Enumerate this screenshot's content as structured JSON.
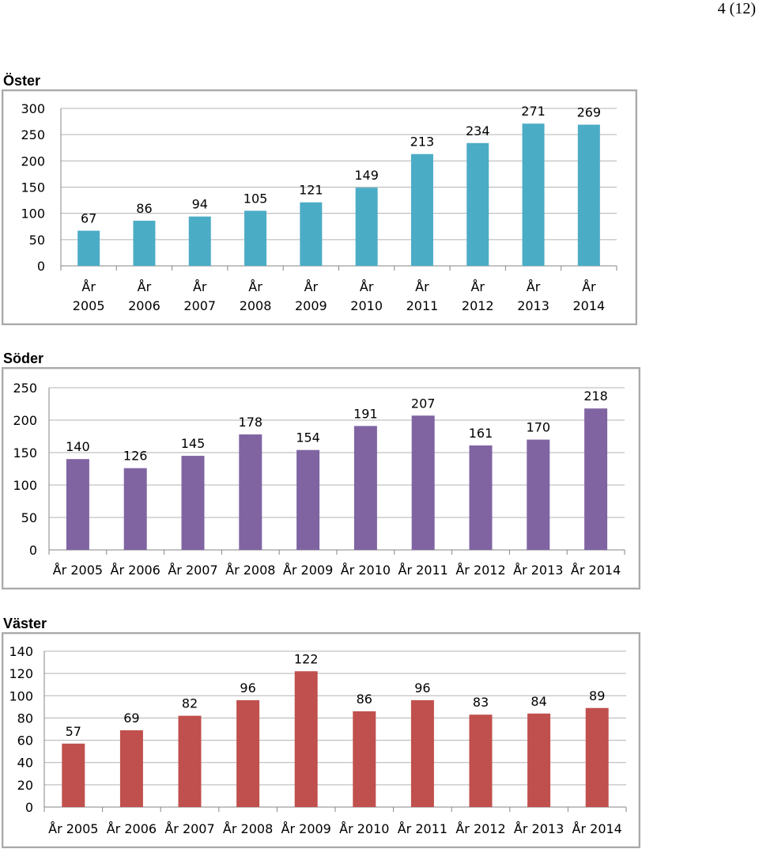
{
  "page_number": "4 (12)",
  "chart_data": [
    {
      "type": "bar",
      "title": "Öster",
      "color": "#4bacc6",
      "categories": [
        [
          "År",
          "2005"
        ],
        [
          "År",
          "2006"
        ],
        [
          "År",
          "2007"
        ],
        [
          "År",
          "2008"
        ],
        [
          "År",
          "2009"
        ],
        [
          "År",
          "2010"
        ],
        [
          "År",
          "2011"
        ],
        [
          "År",
          "2012"
        ],
        [
          "År",
          "2013"
        ],
        [
          "År",
          "2014"
        ]
      ],
      "values": [
        67,
        86,
        94,
        105,
        121,
        149,
        213,
        234,
        271,
        269
      ],
      "ylim": [
        0,
        300
      ],
      "yticks": [
        0,
        50,
        100,
        150,
        200,
        250,
        300
      ],
      "xlabel": "",
      "ylabel": ""
    },
    {
      "type": "bar",
      "title": "Söder",
      "color": "#8064a2",
      "categories": [
        "År 2005",
        "År 2006",
        "År 2007",
        "År 2008",
        "År 2009",
        "År 2010",
        "År 2011",
        "År 2012",
        "År 2013",
        "År 2014"
      ],
      "values": [
        140,
        126,
        145,
        178,
        154,
        191,
        207,
        161,
        170,
        218
      ],
      "ylim": [
        0,
        250
      ],
      "yticks": [
        0,
        50,
        100,
        150,
        200,
        250
      ],
      "xlabel": "",
      "ylabel": ""
    },
    {
      "type": "bar",
      "title": "Väster",
      "color": "#c0504d",
      "categories": [
        "År 2005",
        "År 2006",
        "År 2007",
        "År 2008",
        "År 2009",
        "År 2010",
        "År 2011",
        "År 2012",
        "År 2013",
        "År 2014"
      ],
      "values": [
        57,
        69,
        82,
        96,
        122,
        86,
        96,
        83,
        84,
        89
      ],
      "ylim": [
        0,
        140
      ],
      "yticks": [
        0,
        20,
        40,
        60,
        80,
        100,
        120,
        140
      ],
      "xlabel": "",
      "ylabel": ""
    }
  ]
}
